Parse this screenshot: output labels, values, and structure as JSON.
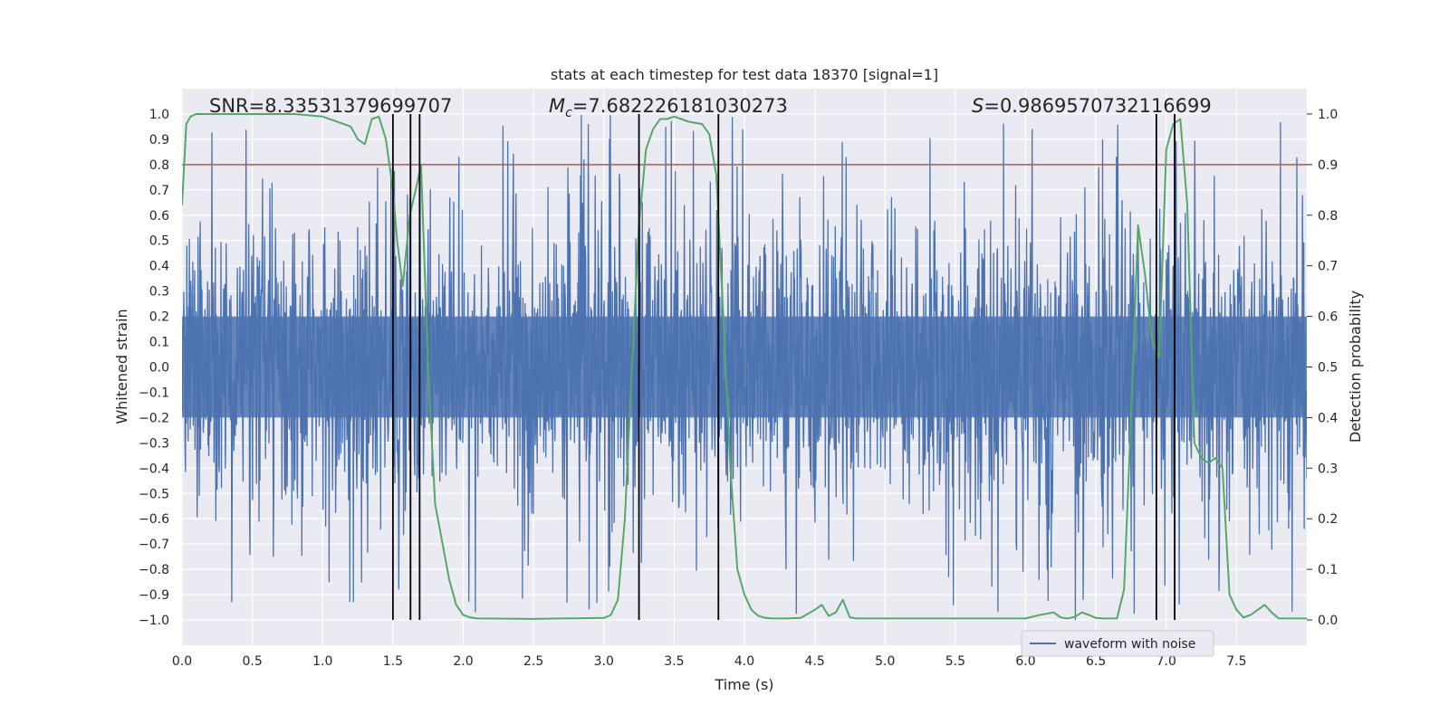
{
  "chart_data": {
    "type": "line",
    "title": "stats at each timestep for test data 18370 [signal=1]",
    "xlabel": "Time (s)",
    "ylabel": "Whitened strain",
    "y2label": "Detection probability",
    "xlim": [
      0.0,
      8.0
    ],
    "ylim": [
      -1.1,
      1.1
    ],
    "y2lim": [
      -0.05,
      1.05
    ],
    "grid": true,
    "legend_position": "lower-right",
    "x_ticks": [
      "0.0",
      "0.5",
      "1.0",
      "1.5",
      "2.0",
      "2.5",
      "3.0",
      "3.5",
      "4.0",
      "4.5",
      "5.0",
      "5.5",
      "6.0",
      "6.5",
      "7.0",
      "7.5"
    ],
    "y_ticks": [
      "1.0",
      "0.9",
      "0.8",
      "0.7",
      "0.6",
      "0.5",
      "0.4",
      "0.3",
      "0.2",
      "0.1",
      "0.0",
      "−0.1",
      "−0.2",
      "−0.3",
      "−0.4",
      "−0.5",
      "−0.6",
      "−0.7",
      "−0.8",
      "−0.9",
      "−1.0"
    ],
    "y2_ticks": [
      "1.0",
      "0.9",
      "0.8",
      "0.7",
      "0.6",
      "0.5",
      "0.4",
      "0.3",
      "0.2",
      "0.1",
      "0.0"
    ],
    "annotations": {
      "snr": "SNR=8.33531379699707",
      "mc_symbol": "M",
      "mc_sub": "c",
      "mc_value": "=7.682226181030273",
      "s_symbol": "S",
      "s_value": "=0.9869570732116699"
    },
    "series": [
      {
        "name": "waveform with noise",
        "kind": "noisy_strain",
        "color": "#4c72b0",
        "duration": 8.0,
        "core_amplitude": 0.4,
        "peak_amplitude": 1.0
      },
      {
        "kind": "detection_probability",
        "axis": "right",
        "color": "#55a868",
        "x": [
          0.0,
          0.03,
          0.06,
          0.1,
          0.2,
          0.4,
          0.6,
          0.8,
          1.0,
          1.1,
          1.2,
          1.25,
          1.3,
          1.35,
          1.4,
          1.45,
          1.5,
          1.53,
          1.57,
          1.62,
          1.67,
          1.7,
          1.75,
          1.8,
          1.9,
          1.95,
          2.0,
          2.05,
          2.1,
          2.5,
          2.7,
          3.0,
          3.05,
          3.1,
          3.15,
          3.2,
          3.25,
          3.3,
          3.35,
          3.4,
          3.45,
          3.5,
          3.55,
          3.6,
          3.7,
          3.75,
          3.8,
          3.85,
          3.9,
          3.95,
          4.0,
          4.05,
          4.1,
          4.15,
          4.2,
          4.3,
          4.4,
          4.5,
          4.55,
          4.6,
          4.65,
          4.7,
          4.75,
          4.8,
          4.85,
          4.9,
          5.0,
          5.5,
          6.0,
          6.1,
          6.2,
          6.25,
          6.3,
          6.35,
          6.4,
          6.45,
          6.5,
          6.55,
          6.6,
          6.65,
          6.7,
          6.75,
          6.8,
          6.85,
          6.9,
          6.95,
          7.0,
          7.05,
          7.1,
          7.15,
          7.2,
          7.25,
          7.3,
          7.35,
          7.4,
          7.45,
          7.5,
          7.55,
          7.6,
          7.65,
          7.7,
          7.75,
          7.8,
          7.9,
          8.0
        ],
        "y": [
          0.82,
          0.98,
          0.995,
          1.0,
          1.0,
          1.0,
          1.0,
          1.0,
          0.995,
          0.985,
          0.975,
          0.95,
          0.94,
          0.99,
          0.995,
          0.95,
          0.85,
          0.75,
          0.66,
          0.8,
          0.86,
          0.9,
          0.5,
          0.23,
          0.08,
          0.03,
          0.01,
          0.005,
          0.003,
          0.002,
          0.003,
          0.004,
          0.01,
          0.04,
          0.2,
          0.5,
          0.78,
          0.93,
          0.97,
          0.99,
          0.99,
          0.995,
          0.99,
          0.985,
          0.98,
          0.96,
          0.88,
          0.6,
          0.3,
          0.1,
          0.05,
          0.02,
          0.008,
          0.004,
          0.003,
          0.003,
          0.004,
          0.02,
          0.03,
          0.008,
          0.015,
          0.04,
          0.005,
          0.003,
          0.003,
          0.003,
          0.003,
          0.003,
          0.003,
          0.01,
          0.015,
          0.005,
          0.003,
          0.006,
          0.015,
          0.01,
          0.004,
          0.003,
          0.003,
          0.003,
          0.06,
          0.4,
          0.78,
          0.68,
          0.55,
          0.52,
          0.93,
          0.98,
          0.99,
          0.82,
          0.35,
          0.32,
          0.31,
          0.32,
          0.3,
          0.05,
          0.02,
          0.005,
          0.01,
          0.02,
          0.03,
          0.015,
          0.003,
          0.003,
          0.003
        ]
      }
    ],
    "threshold": {
      "y": 0.8,
      "color": "#c44e52"
    },
    "vertical_markers": [
      1.5,
      1.625,
      1.69,
      3.25,
      3.815,
      6.93,
      7.06
    ]
  }
}
